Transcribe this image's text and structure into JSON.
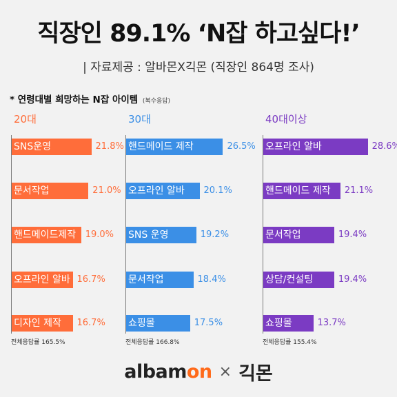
{
  "header": {
    "title": "직장인 89.1% ‘N잡 하고싶다!’",
    "subtitle": "| 자료제공 : 알바몬X긱몬 (직장인 864명 조사)"
  },
  "section": {
    "title": "* 연령대별 희망하는 N잡 아이템",
    "note": "(복수응답)"
  },
  "colors": {
    "20s": "#ff6d3a",
    "30s": "#3b8fe6",
    "40s": "#7b3bc3"
  },
  "chart_data": {
    "type": "bar",
    "orientation": "horizontal",
    "value_unit": "%",
    "groups": [
      {
        "name": "20대",
        "categories": [
          "SNS운영",
          "문서작업",
          "핸드메이드제작",
          "오프라인 알바",
          "디자인 제작"
        ],
        "values": [
          21.8,
          21.0,
          19.0,
          16.7,
          16.7
        ],
        "value_labels": [
          "21.8%",
          "21.0%",
          "19.0%",
          "16.7%",
          "16.7%"
        ],
        "total": "전체응답률 165.5%"
      },
      {
        "name": "30대",
        "categories": [
          "핸드메이드 제작",
          "오프라인 알바",
          "SNS 운영",
          "문서작업",
          "쇼핑몰"
        ],
        "values": [
          26.5,
          20.1,
          19.2,
          18.4,
          17.5
        ],
        "value_labels": [
          "26.5%",
          "20.1%",
          "19.2%",
          "18.4%",
          "17.5%"
        ],
        "total": "전체응답률 166.8%"
      },
      {
        "name": "40대이상",
        "categories": [
          "오프라인 알바",
          "핸드메이드 제작",
          "문서작업",
          "상담/컨설팅",
          "쇼핑몰"
        ],
        "values": [
          28.6,
          21.1,
          19.4,
          19.4,
          13.7
        ],
        "value_labels": [
          "28.6%",
          "21.1%",
          "19.4%",
          "19.4%",
          "13.7%"
        ],
        "total": "전체응답률 155.4%"
      }
    ]
  },
  "footer": {
    "albamon_main": "albam",
    "albamon_accent": "on",
    "times": "×",
    "jobmon": "긱몬"
  }
}
